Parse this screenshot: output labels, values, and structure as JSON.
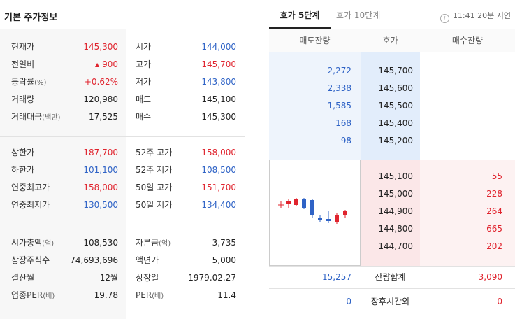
{
  "basic": {
    "title": "기본 주가정보",
    "group1": [
      {
        "label": "현재가",
        "value": "145,300",
        "label2": "시가",
        "value2": "144,000"
      },
      {
        "label": "전일비",
        "arrow": "▲",
        "value": "900",
        "label2": "고가",
        "value2": "145,700"
      },
      {
        "label": "등락률",
        "unit": "(%)",
        "value": "+0.62%",
        "label2": "저가",
        "value2": "143,800"
      },
      {
        "label": "거래량",
        "value": "120,980",
        "label2": "매도",
        "value2": "145,100"
      },
      {
        "label": "거래대금",
        "unit": "(백만)",
        "value": "17,525",
        "label2": "매수",
        "value2": "145,300"
      }
    ],
    "group2": [
      {
        "label": "상한가",
        "value": "187,700",
        "label2": "52주 고가",
        "value2": "158,000"
      },
      {
        "label": "하한가",
        "value": "101,100",
        "label2": "52주 저가",
        "value2": "108,500"
      },
      {
        "label": "연중최고가",
        "value": "158,000",
        "label2": "50일 고가",
        "value2": "151,700"
      },
      {
        "label": "연중최저가",
        "value": "130,500",
        "label2": "50일 저가",
        "value2": "134,400"
      }
    ],
    "group3": [
      {
        "label": "시가총액",
        "unit": "(억)",
        "value": "108,530",
        "label2": "자본금",
        "unit2": "(억)",
        "value2": "3,735"
      },
      {
        "label": "상장주식수",
        "value": "74,693,696",
        "label2": "액면가",
        "value2": "5,000"
      },
      {
        "label": "결산월",
        "value": "12월",
        "label2": "상장일",
        "value2": "1979.02.27"
      },
      {
        "label": "업종PER",
        "unit": "(배)",
        "value": "19.78",
        "label2": "PER",
        "unit2": "(배)",
        "value2": "11.4"
      }
    ]
  },
  "orderbook": {
    "tabs": [
      "호가 5단계",
      "호가 10단계"
    ],
    "delay": "11:41 20분 지연",
    "headers": [
      "매도잔량",
      "호가",
      "매수잔량"
    ],
    "asks": [
      {
        "volume": "2,272",
        "price": "145,700"
      },
      {
        "volume": "2,338",
        "price": "145,600"
      },
      {
        "volume": "1,585",
        "price": "145,500"
      },
      {
        "volume": "168",
        "price": "145,400"
      },
      {
        "volume": "98",
        "price": "145,200"
      }
    ],
    "bids": [
      {
        "price": "145,100",
        "volume": "55"
      },
      {
        "price": "145,000",
        "volume": "228"
      },
      {
        "price": "144,900",
        "volume": "264"
      },
      {
        "price": "144,800",
        "volume": "665"
      },
      {
        "price": "144,700",
        "volume": "202"
      }
    ],
    "totals": {
      "ask": "15,257",
      "label": "잔량합계",
      "bid": "3,090"
    },
    "after_hours": {
      "ask": "0",
      "label": "장후시간외",
      "bid": "0"
    }
  },
  "colors": {
    "up": "#e0242e",
    "down": "#2f63c6"
  }
}
